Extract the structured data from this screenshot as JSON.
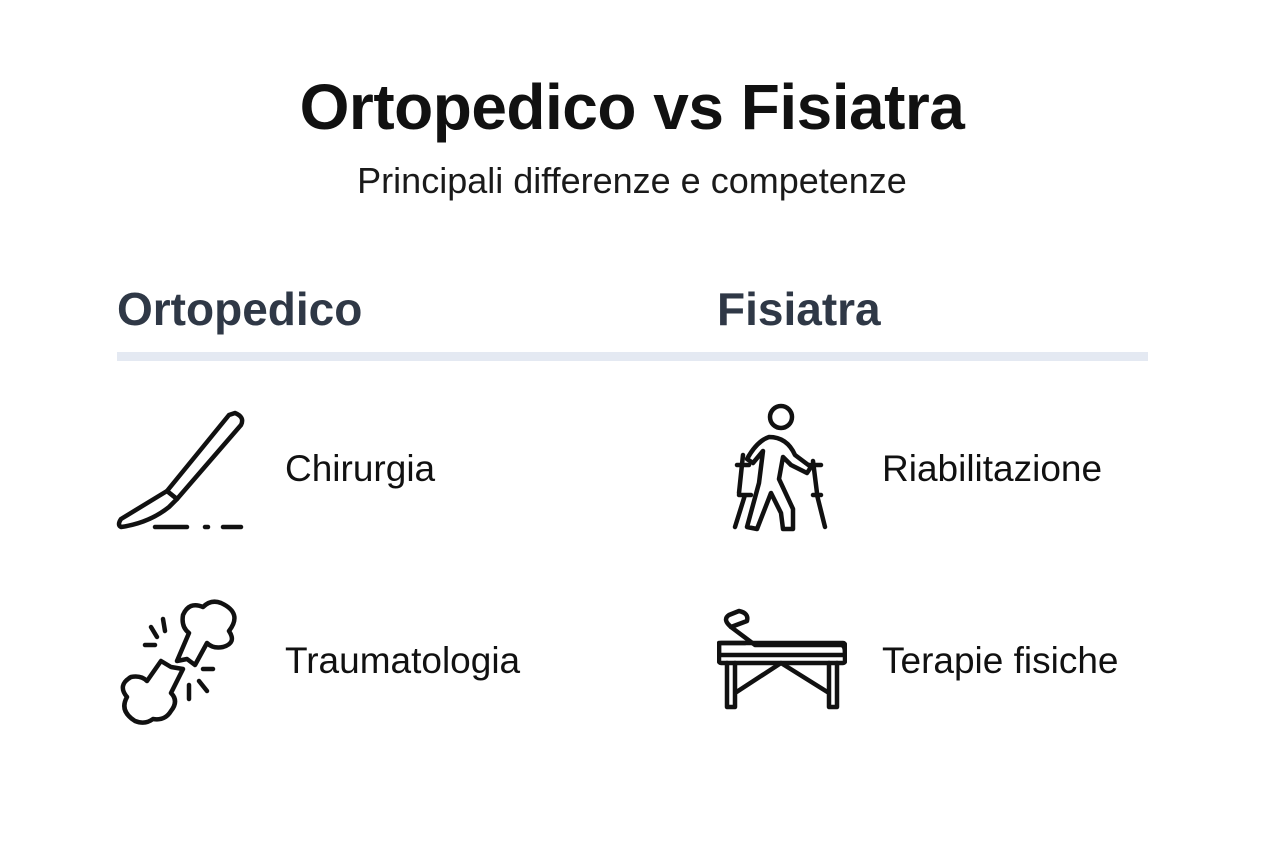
{
  "header": {
    "title": "Ortopedico vs Fisiatra",
    "subtitle": "Principali differenze e competenze"
  },
  "columns": [
    {
      "title": "Ortopedico",
      "items": [
        {
          "label": "Chirurgia",
          "icon": "scalpel-icon"
        },
        {
          "label": "Traumatologia",
          "icon": "broken-bone-icon"
        }
      ]
    },
    {
      "title": "Fisiatra",
      "items": [
        {
          "label": "Riabilitazione",
          "icon": "person-with-crutches-icon"
        },
        {
          "label": "Terapie fisiche",
          "icon": "therapy-table-icon"
        }
      ]
    }
  ],
  "colors": {
    "heading": "#2f3846",
    "divider": "#e4e9f2",
    "text": "#111111"
  }
}
